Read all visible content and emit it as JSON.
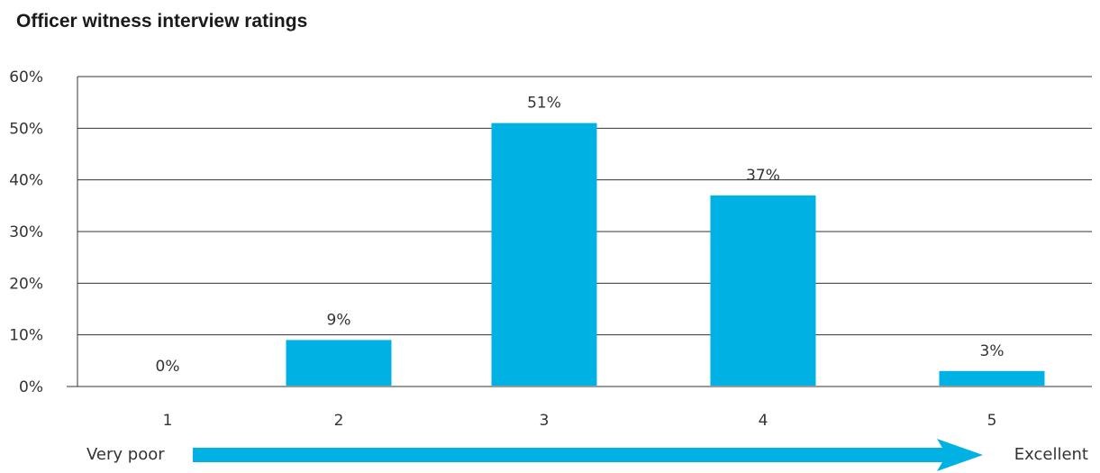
{
  "chart_data": {
    "type": "bar",
    "title": "Officer witness interview ratings",
    "categories": [
      "1",
      "2",
      "3",
      "4",
      "5"
    ],
    "values": [
      0,
      9,
      51,
      37,
      3
    ],
    "value_labels": [
      "0%",
      "9%",
      "51%",
      "37%",
      "3%"
    ],
    "y_ticks": [
      "0%",
      "10%",
      "20%",
      "30%",
      "40%",
      "50%",
      "60%"
    ],
    "ylim": [
      0,
      60
    ],
    "grid": true,
    "xlabel": "",
    "ylabel": "",
    "scale_low_label": "Very poor",
    "scale_high_label": "Excellent",
    "bar_color": "#00b2e3",
    "arrow_color": "#00b2e3"
  }
}
